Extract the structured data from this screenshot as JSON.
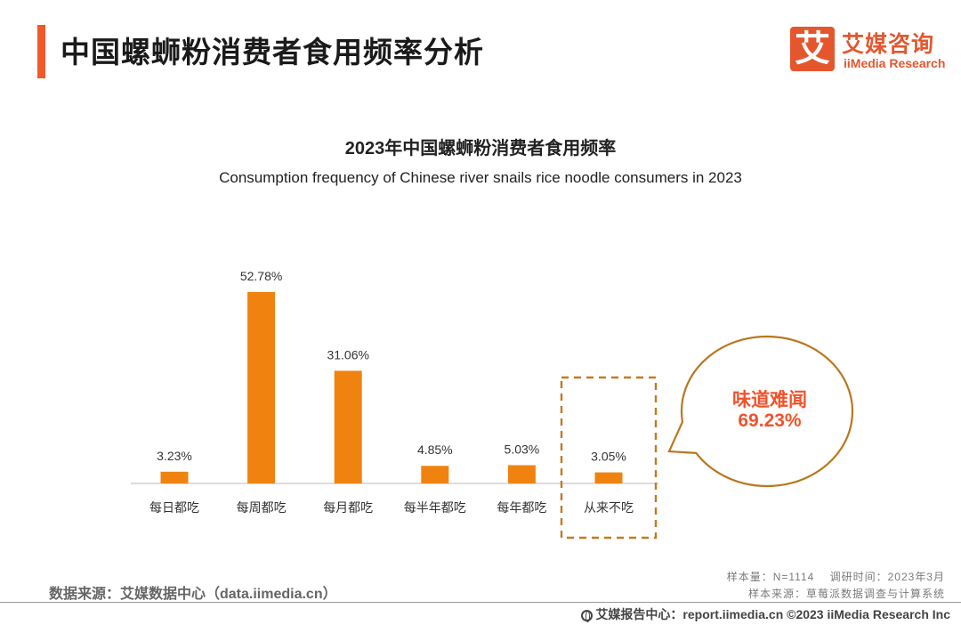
{
  "header": {
    "title": "中国螺蛳粉消费者食用频率分析"
  },
  "logo": {
    "badge": "艾",
    "name_cn": "艾媒咨询",
    "name_en": "iiMedia Research"
  },
  "chart_data": {
    "type": "bar",
    "title": "2023年中国螺蛳粉消费者食用频率",
    "subtitle": "Consumption frequency of Chinese river snails rice noodle consumers in 2023",
    "categories": [
      "每日都吃",
      "每周都吃",
      "每月都吃",
      "每半年都吃",
      "每年都吃",
      "从来不吃"
    ],
    "values": [
      3.23,
      52.78,
      31.06,
      4.85,
      5.03,
      3.05
    ],
    "value_labels": [
      "3.23%",
      "52.78%",
      "31.06%",
      "4.85%",
      "5.03%",
      "3.05%"
    ],
    "unit": "%",
    "ylim": [
      0,
      60
    ],
    "grid": false,
    "legend": "none",
    "highlighted_category": "从来不吃",
    "bar_color": "#f08310",
    "highlight_color": "#c47a1e",
    "callout": {
      "label": "味道难闻",
      "value": "69.23%"
    }
  },
  "footer": {
    "source_left": "数据来源：艾媒数据中心（data.iimedia.cn）",
    "sample_line": "样本量：N=1114　 调研时间：2023年3月",
    "sample_source": "样本来源：草莓派数据调查与计算系统",
    "copyright": "艾媒报告中心：report.iimedia.cn  ©2023  iiMedia Research  Inc",
    "globe_icon": "globe-icon"
  }
}
